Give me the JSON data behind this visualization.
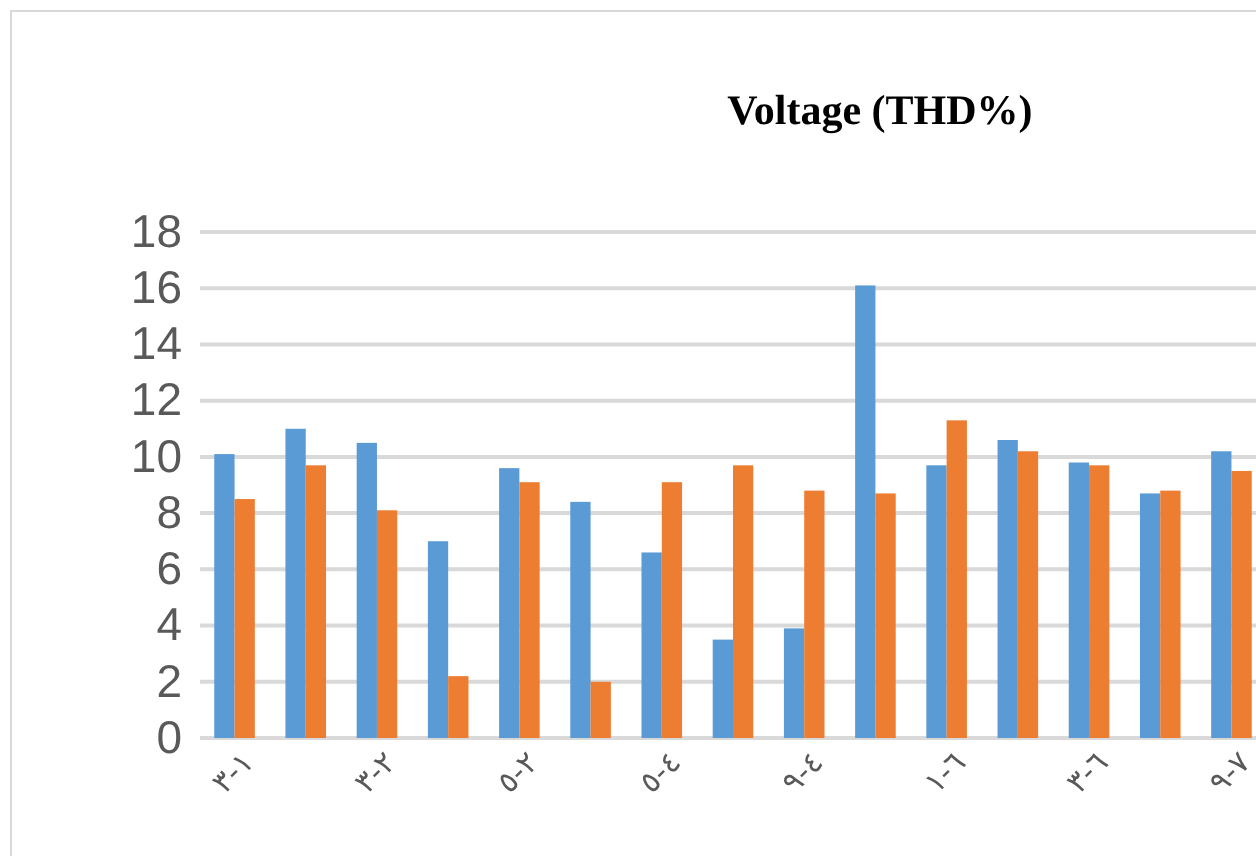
{
  "chart_data": {
    "type": "bar",
    "title": "Voltage (THD%)",
    "categories": [
      "١-٣",
      null,
      "٢-٣",
      null,
      "٢-٥",
      null,
      "٤-٥",
      null,
      "٤-٩",
      null,
      "٦-١",
      null,
      "٦-٣",
      null,
      "٧-٩"
    ],
    "series": [
      {
        "color": "#5b9bd5",
        "values": [
          10.1,
          11.0,
          10.5,
          7.0,
          9.6,
          8.4,
          6.6,
          3.5,
          3.9,
          16.1,
          9.7,
          10.6,
          9.8,
          8.7,
          10.2
        ]
      },
      {
        "color": "#ed7d31",
        "values": [
          8.5,
          9.7,
          8.1,
          2.2,
          9.1,
          2.0,
          9.1,
          9.7,
          8.8,
          8.7,
          11.3,
          10.2,
          9.7,
          8.8,
          9.5
        ]
      }
    ],
    "ylim": [
      0,
      18
    ],
    "yticks": [
      0,
      2,
      4,
      6,
      8,
      10,
      12,
      14,
      16,
      18
    ],
    "grid": "y"
  }
}
